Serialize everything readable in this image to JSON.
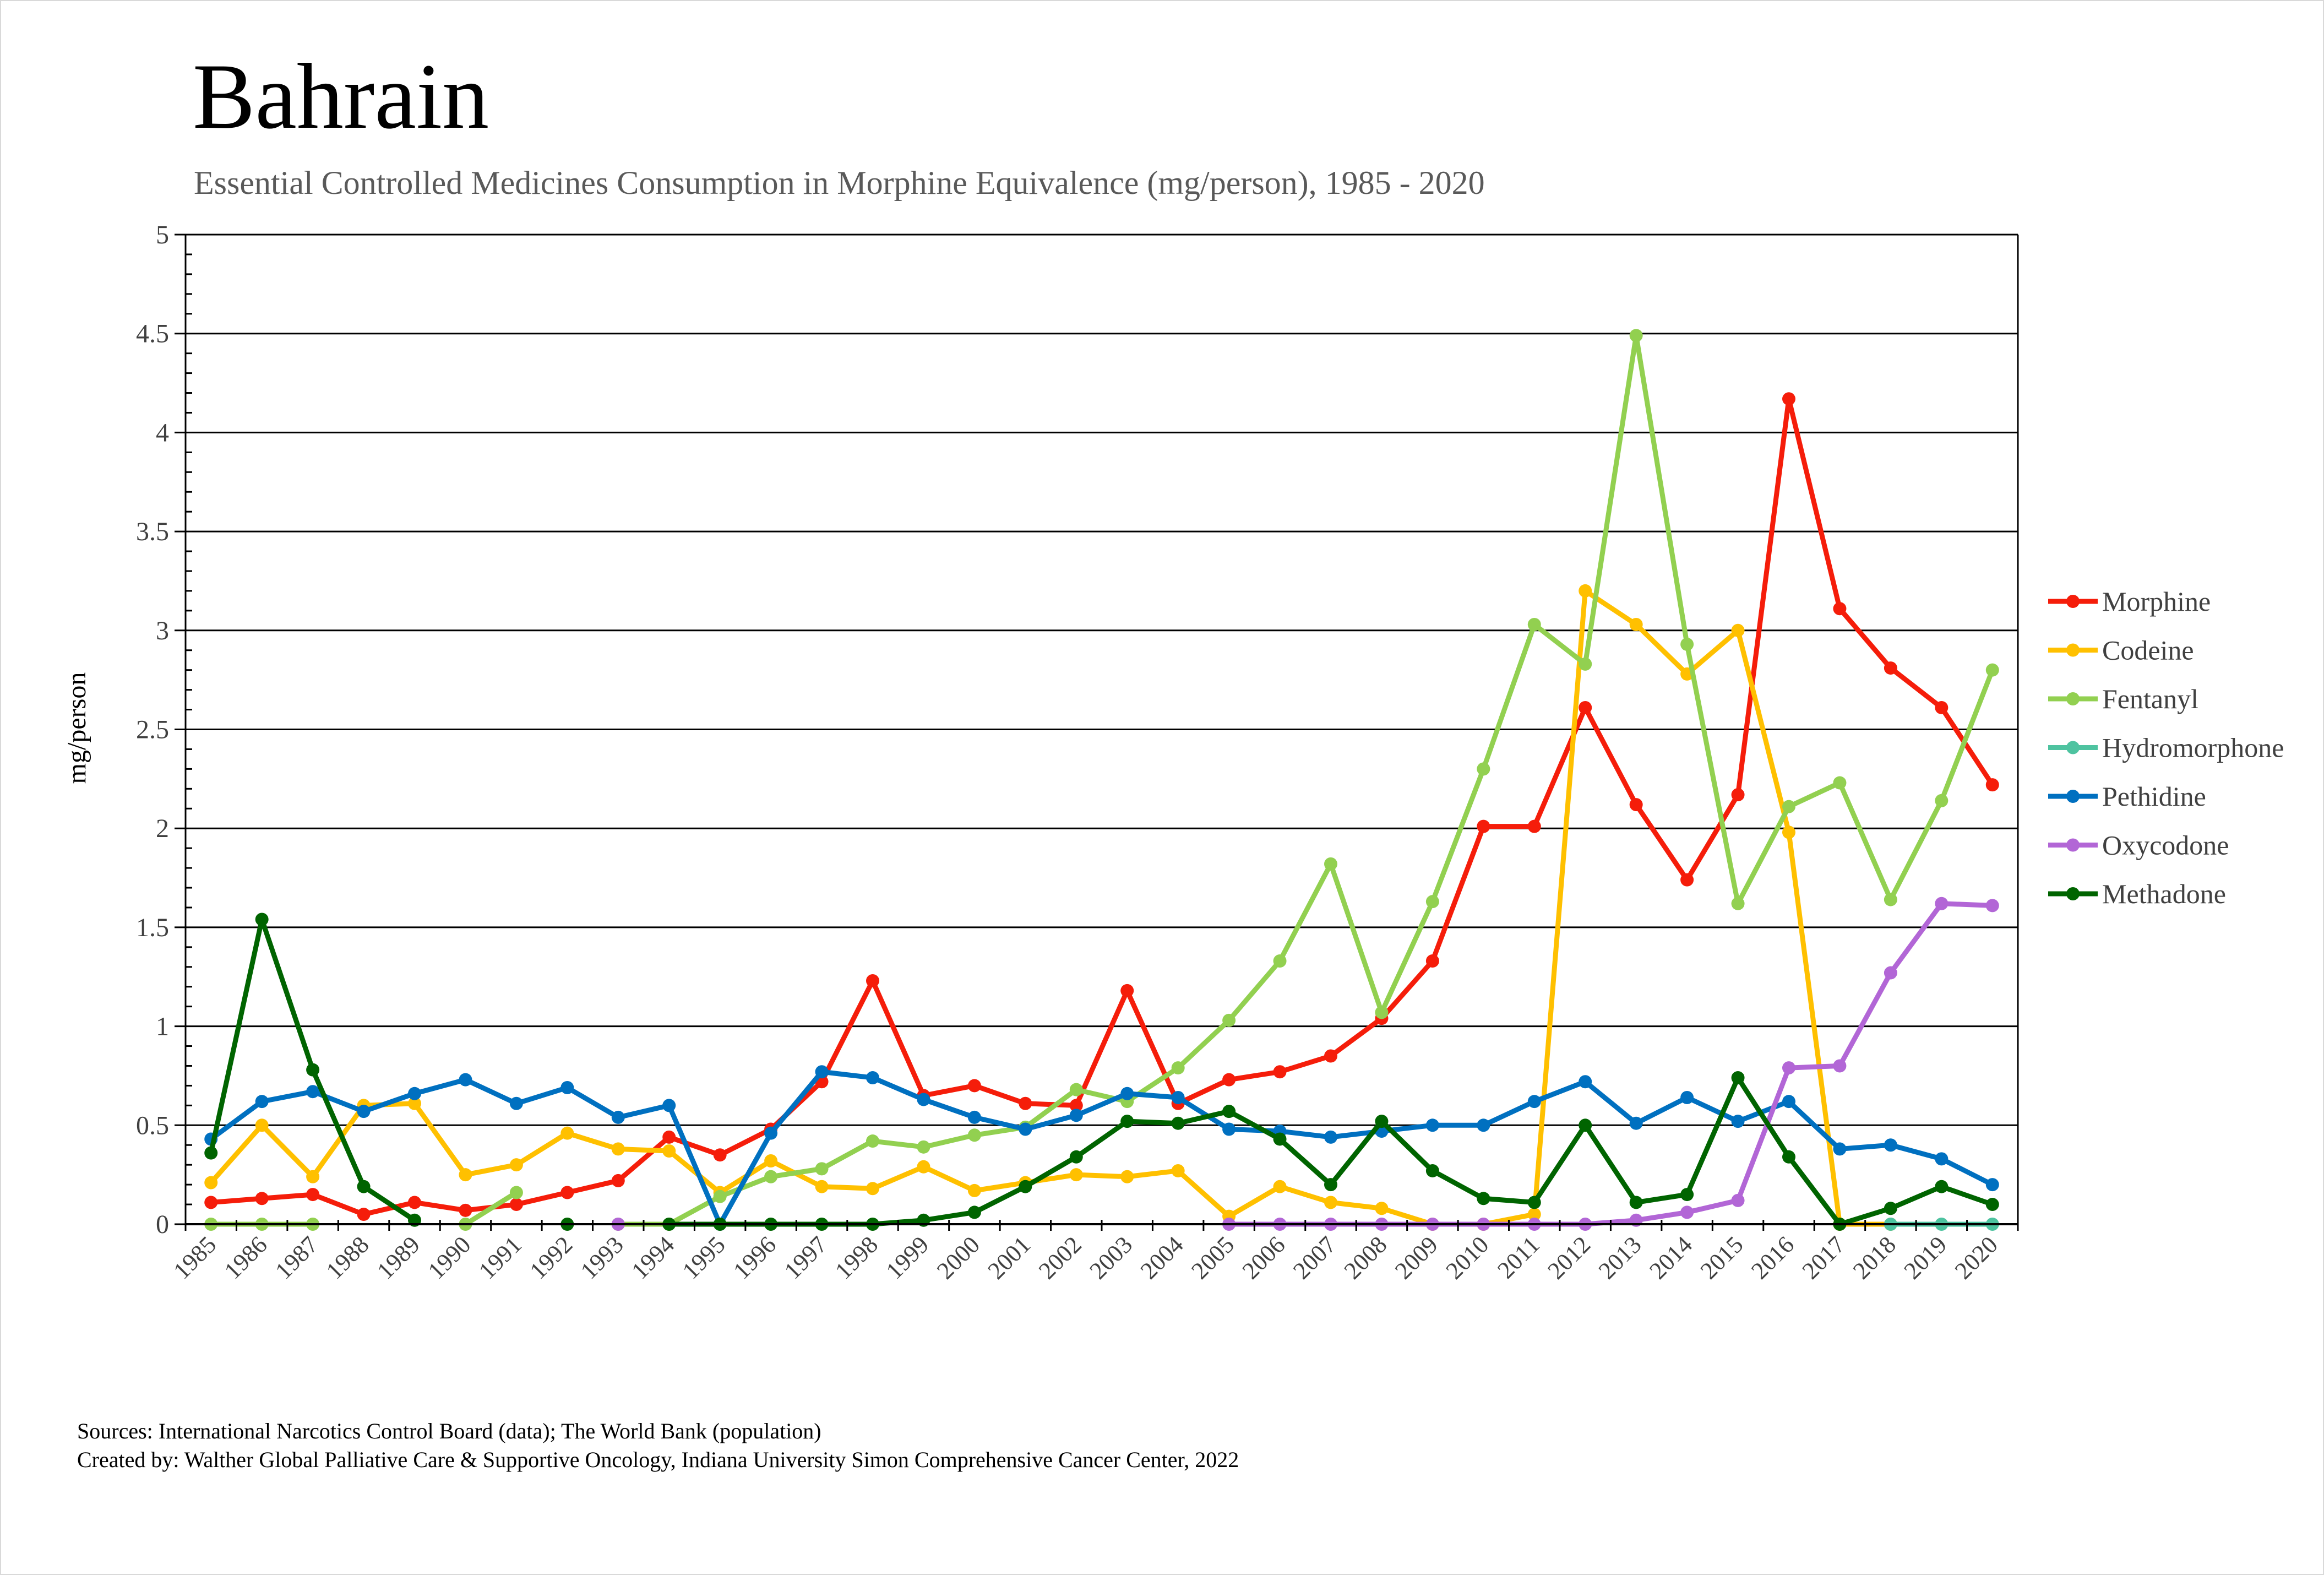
{
  "chart_data": {
    "type": "line",
    "title": "Bahrain",
    "subtitle": "Essential Controlled Medicines Consumption in Morphine Equivalence (mg/person), 1985 - 2020",
    "xlabel": "",
    "ylabel": "mg/person",
    "ylim": [
      0,
      5
    ],
    "yticks": [
      "0",
      "0.5",
      "1",
      "1.5",
      "2",
      "2.5",
      "3",
      "3.5",
      "4",
      "4.5",
      "5"
    ],
    "grid": true,
    "legend_position": "right",
    "categories": [
      "1985",
      "1986",
      "1987",
      "1988",
      "1989",
      "1990",
      "1991",
      "1992",
      "1993",
      "1994",
      "1995",
      "1996",
      "1997",
      "1998",
      "1999",
      "2000",
      "2001",
      "2002",
      "2003",
      "2004",
      "2005",
      "2006",
      "2007",
      "2008",
      "2009",
      "2010",
      "2011",
      "2012",
      "2013",
      "2014",
      "2015",
      "2016",
      "2017",
      "2018",
      "2019",
      "2020"
    ],
    "series": [
      {
        "name": "Morphine",
        "color": "#f51d0a",
        "values": [
          0.11,
          0.13,
          0.15,
          0.05,
          0.11,
          0.07,
          0.1,
          0.16,
          0.22,
          0.44,
          0.35,
          0.48,
          0.72,
          1.23,
          0.65,
          0.7,
          0.61,
          0.6,
          1.18,
          0.61,
          0.73,
          0.77,
          0.85,
          1.04,
          1.33,
          2.01,
          2.01,
          2.61,
          2.12,
          1.74,
          2.17,
          4.17,
          3.11,
          2.81,
          2.61,
          2.22
        ]
      },
      {
        "name": "Codeine",
        "color": "#ffc000",
        "values": [
          0.21,
          0.5,
          0.24,
          0.6,
          0.61,
          0.25,
          0.3,
          0.46,
          0.38,
          0.37,
          0.16,
          0.32,
          0.19,
          0.18,
          0.29,
          0.17,
          0.21,
          0.25,
          0.24,
          0.27,
          0.04,
          0.19,
          0.11,
          0.08,
          0.0,
          0.0,
          0.05,
          3.2,
          3.03,
          2.78,
          3.0,
          1.98,
          0.0,
          0.0,
          null,
          null
        ]
      },
      {
        "name": "Fentanyl",
        "color": "#92d050",
        "values": [
          0,
          0,
          0,
          null,
          null,
          0,
          0.16,
          null,
          0,
          0,
          0.14,
          0.24,
          0.28,
          0.42,
          0.39,
          0.45,
          0.49,
          0.68,
          0.62,
          0.79,
          1.03,
          1.33,
          1.82,
          1.07,
          1.63,
          2.3,
          3.03,
          2.83,
          4.49,
          2.93,
          1.62,
          2.11,
          2.23,
          1.64,
          2.14,
          2.8
        ]
      },
      {
        "name": "Hydromorphone",
        "color": "#4ec3a0",
        "values": [
          null,
          null,
          null,
          null,
          null,
          null,
          null,
          null,
          null,
          null,
          null,
          null,
          null,
          null,
          null,
          null,
          null,
          null,
          null,
          null,
          null,
          null,
          null,
          null,
          null,
          null,
          null,
          null,
          null,
          null,
          null,
          null,
          null,
          0,
          0,
          0
        ]
      },
      {
        "name": "Pethidine",
        "color": "#0070c0",
        "values": [
          0.43,
          0.62,
          0.67,
          0.57,
          0.66,
          0.73,
          0.61,
          0.69,
          0.54,
          0.6,
          0.0,
          0.46,
          0.77,
          0.74,
          0.63,
          0.54,
          0.48,
          0.55,
          0.66,
          0.64,
          0.48,
          0.47,
          0.44,
          0.47,
          0.5,
          0.5,
          0.62,
          0.72,
          0.51,
          0.64,
          0.52,
          0.62,
          0.38,
          0.4,
          0.33,
          0.2
        ]
      },
      {
        "name": "Oxycodone",
        "color": "#b266d6",
        "values": [
          null,
          null,
          null,
          null,
          null,
          null,
          null,
          null,
          0,
          null,
          null,
          null,
          null,
          null,
          null,
          null,
          null,
          null,
          null,
          null,
          0,
          0,
          0,
          0,
          0,
          0,
          0,
          0,
          0.02,
          0.06,
          0.12,
          0.79,
          0.8,
          1.27,
          1.62,
          1.61
        ]
      },
      {
        "name": "Methadone",
        "color": "#006400",
        "values": [
          0.36,
          1.54,
          0.78,
          0.19,
          0.02,
          null,
          null,
          0,
          null,
          0,
          0,
          0,
          0,
          0,
          0.02,
          0.06,
          0.19,
          0.34,
          0.52,
          0.51,
          0.57,
          0.43,
          0.2,
          0.52,
          0.27,
          0.13,
          0.11,
          0.5,
          0.11,
          0.15,
          0.74,
          0.34,
          0.0,
          0.08,
          0.19,
          0.1
        ]
      }
    ]
  },
  "footer": {
    "sources": "Sources: International Narcotics Control Board (data); The World Bank (population)",
    "created_by": "Created by: Walther Global Palliative Care & Supportive Oncology, Indiana University Simon Comprehensive Cancer Center, 2022"
  }
}
